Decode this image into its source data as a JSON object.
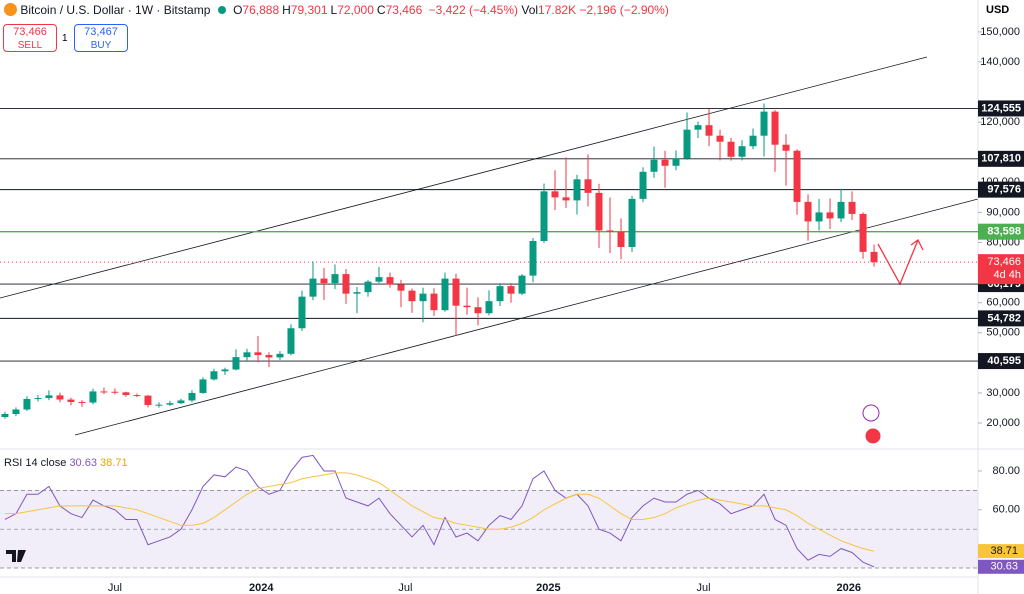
{
  "header": {
    "symbol": "Bitcoin / U.S. Dollar · 1W · Bitstamp",
    "ohlc": [
      {
        "label": "O",
        "value": "76,888"
      },
      {
        "label": "H",
        "value": "79,301"
      },
      {
        "label": "L",
        "value": "72,000"
      },
      {
        "label": "C",
        "value": "73,466"
      }
    ],
    "change": "−3,422 (−4.45%)",
    "vol_label": "Vol",
    "vol": "17.82K",
    "vol_change": "−2,196 (−2.90%)",
    "sell_price": "73,466",
    "sell": "SELL",
    "qty": "1",
    "buy_price": "73,467",
    "buy": "BUY",
    "currency": "USD"
  },
  "chart_data": [
    {
      "type": "candlestick",
      "up_color": "#089981",
      "down_color": "#f23645",
      "xlim": [
        -0.45,
        88.45
      ],
      "xticks": [
        {
          "value": 10,
          "label": "Jul"
        },
        {
          "value": 23.3,
          "label": "2024"
        },
        {
          "value": 36.4,
          "label": "Jul"
        },
        {
          "value": 49.4,
          "label": "2025"
        },
        {
          "value": 63.5,
          "label": "Jul"
        },
        {
          "value": 76.7,
          "label": "2026"
        }
      ],
      "ylim": [
        11700,
        160600
      ],
      "yticks": [
        {
          "value": 150000,
          "label": "150,000"
        },
        {
          "value": 140000,
          "label": "140,000"
        },
        {
          "value": 120000,
          "label": "120,000"
        },
        {
          "value": 100000,
          "label": "100,000"
        },
        {
          "value": 90000,
          "label": "90,000"
        },
        {
          "value": 80000,
          "label": "80,000"
        },
        {
          "value": 60000,
          "label": "60,000"
        },
        {
          "value": 50000,
          "label": "50,000"
        },
        {
          "value": 30000,
          "label": "30,000"
        },
        {
          "value": 20000,
          "label": "20,000"
        }
      ],
      "levels": [
        {
          "value": 124555,
          "label": "124,555",
          "color": "#131722"
        },
        {
          "value": 107810,
          "label": "107,810",
          "color": "#131722"
        },
        {
          "value": 97576,
          "label": "97,576",
          "color": "#131722"
        },
        {
          "value": 83598,
          "label": "83,598",
          "color": "#4caf50"
        },
        {
          "value": 66179,
          "label": "66,179",
          "color": "#131722"
        },
        {
          "value": 54782,
          "label": "54,782",
          "color": "#131722"
        },
        {
          "value": 40595,
          "label": "40,595",
          "color": "#131722"
        }
      ],
      "last_price": {
        "value": 73466,
        "label": "73,466",
        "countdown": "4d 4h",
        "color": "#f23645"
      },
      "open": [
        22000,
        23000,
        24500,
        28000,
        28300,
        29200,
        27800,
        27000,
        26800,
        30500,
        30400,
        30200,
        29300,
        29100,
        26000,
        26100,
        26600,
        27500,
        30000,
        34500,
        37200,
        37800,
        41900,
        43500,
        42600,
        41800,
        43000,
        51500,
        62000,
        68000,
        66500,
        69500,
        63000,
        63500,
        67000,
        68500,
        66000,
        64000,
        60500,
        63000,
        57500,
        68000,
        59000,
        58500,
        56500,
        60500,
        65500,
        63000,
        69000,
        80500,
        97000,
        95000,
        94000,
        101000,
        96500,
        84000,
        83500,
        78500,
        94500,
        103500,
        107500,
        105500,
        108000,
        117500,
        119000,
        115500,
        113500,
        108500,
        112000,
        115500,
        123500,
        112500,
        110500,
        93500,
        87000,
        90000,
        88000,
        93500,
        89500,
        76888
      ],
      "high": [
        23800,
        25200,
        28900,
        29300,
        30900,
        30100,
        28400,
        27600,
        31400,
        31800,
        31500,
        30400,
        29800,
        29300,
        26900,
        27400,
        28100,
        30900,
        35200,
        38000,
        38400,
        44500,
        44700,
        48900,
        43500,
        43900,
        52800,
        64000,
        73700,
        71500,
        72700,
        71200,
        65200,
        67500,
        71900,
        70000,
        67600,
        64700,
        65000,
        64800,
        70000,
        69600,
        65000,
        61800,
        64100,
        66500,
        66500,
        69500,
        81500,
        99600,
        104000,
        108300,
        102500,
        109300,
        99500,
        95000,
        88000,
        95500,
        105000,
        111900,
        110500,
        110600,
        123200,
        120200,
        124400,
        117500,
        114800,
        114000,
        117900,
        126200,
        124000,
        116000,
        111000,
        96000,
        94500,
        94600,
        97900,
        97000,
        90000,
        79301
      ],
      "low": [
        21400,
        22300,
        24000,
        27200,
        27600,
        26900,
        25900,
        25400,
        26200,
        29600,
        29500,
        28700,
        28600,
        25200,
        25100,
        25700,
        26300,
        26900,
        29700,
        34100,
        36000,
        37500,
        40600,
        40200,
        38600,
        41000,
        42500,
        50600,
        60800,
        60900,
        64500,
        59600,
        56500,
        62000,
        66500,
        65000,
        58500,
        56600,
        53500,
        55600,
        57000,
        49000,
        56000,
        52500,
        55800,
        58900,
        60000,
        62500,
        66800,
        79900,
        90800,
        91500,
        89300,
        92000,
        78200,
        76500,
        74400,
        76800,
        93400,
        101500,
        98200,
        104000,
        107500,
        114700,
        112000,
        107300,
        107200,
        107300,
        111000,
        108600,
        103500,
        98900,
        89200,
        80600,
        84000,
        84500,
        86800,
        87500,
        74600,
        72000
      ],
      "close": [
        23000,
        24500,
        28000,
        28300,
        29200,
        27800,
        27000,
        26800,
        30500,
        30400,
        30200,
        29300,
        29100,
        26000,
        26100,
        26600,
        27500,
        30000,
        34500,
        37200,
        37800,
        41900,
        43500,
        42600,
        41800,
        43000,
        51500,
        62000,
        68000,
        66500,
        69500,
        63000,
        63500,
        67000,
        68500,
        66000,
        64000,
        60500,
        63000,
        57500,
        68000,
        59000,
        58500,
        56500,
        60500,
        65500,
        63000,
        69000,
        80500,
        97000,
        95000,
        94000,
        101000,
        96500,
        84000,
        83500,
        78500,
        94500,
        103500,
        107500,
        105500,
        108000,
        117500,
        119000,
        115500,
        113500,
        108500,
        112000,
        115500,
        123500,
        112500,
        110500,
        93500,
        87000,
        90000,
        88000,
        93500,
        89500,
        76888,
        73466
      ]
    },
    {
      "type": "line",
      "title": "RSI 14 close",
      "ylim": [
        26.4,
        90.8
      ],
      "yticks": [
        {
          "value": 80,
          "label": "80.00"
        },
        {
          "value": 60,
          "label": "60.00"
        }
      ],
      "bands": [
        70,
        50,
        30
      ],
      "series": [
        {
          "name": "30.63",
          "color": "#7e57c2",
          "values": [
            55,
            58,
            68,
            68,
            72,
            62,
            58,
            56,
            65,
            62,
            60,
            55,
            55,
            42,
            44,
            46,
            50,
            60,
            72,
            78,
            77,
            82,
            80,
            72,
            68,
            70,
            80,
            87,
            88,
            80,
            80,
            66,
            64,
            62,
            66,
            58,
            52,
            46,
            52,
            42,
            56,
            46,
            48,
            44,
            52,
            57,
            55,
            62,
            76,
            80,
            70,
            66,
            68,
            62,
            50,
            48,
            44,
            56,
            62,
            66,
            64,
            64,
            68,
            70,
            66,
            63,
            58,
            60,
            62,
            68,
            55,
            52,
            40,
            34,
            37,
            36,
            40,
            38,
            33,
            30.63
          ]
        },
        {
          "name": "38.71",
          "color": "#f7c53a",
          "values": [
            58,
            58,
            59,
            60,
            61,
            62,
            62,
            62,
            62,
            62,
            62,
            61,
            60,
            58,
            56,
            54,
            52,
            52,
            53,
            56,
            60,
            64,
            68,
            71,
            72,
            73,
            74,
            76,
            77,
            78,
            79,
            79,
            78,
            76,
            74,
            70,
            66,
            62,
            59,
            56,
            55,
            53,
            52,
            51,
            50,
            50,
            51,
            53,
            56,
            60,
            63,
            66,
            68,
            68,
            66,
            62,
            58,
            55,
            55,
            56,
            58,
            61,
            63,
            65,
            66,
            65,
            64,
            63,
            62,
            62,
            61,
            60,
            57,
            53,
            50,
            47,
            44,
            42,
            40,
            38.71
          ]
        }
      ]
    }
  ]
}
